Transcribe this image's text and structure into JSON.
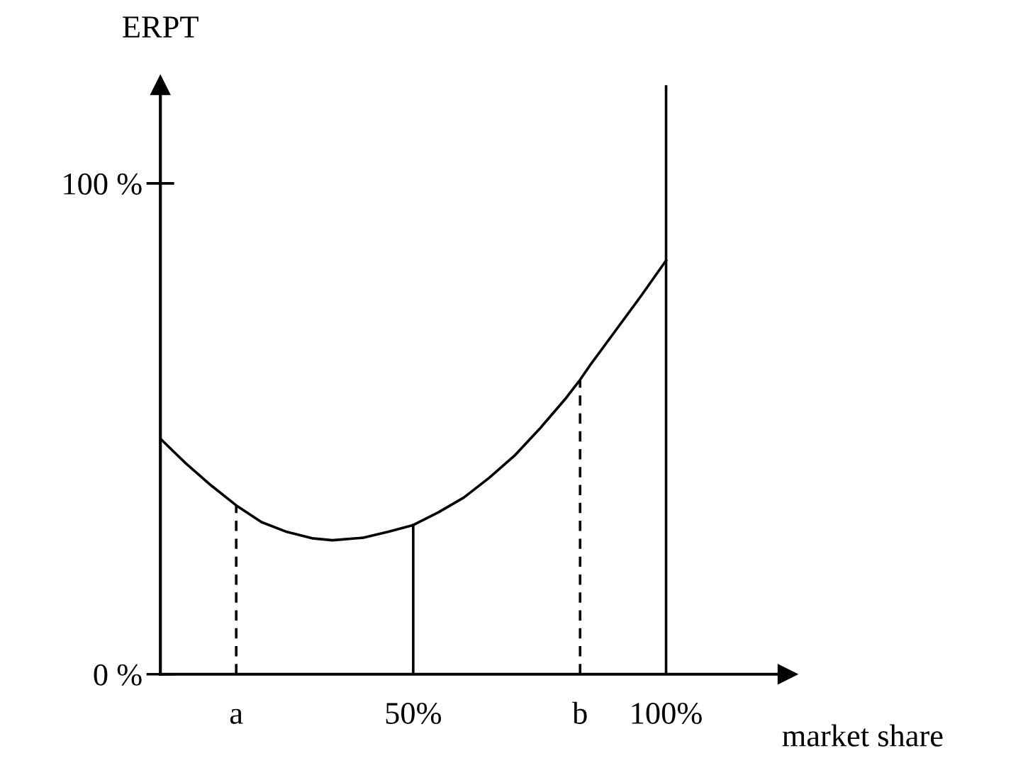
{
  "chart_data": {
    "type": "line",
    "xlabel": "market share",
    "ylabel": "ERPT",
    "xlim": [
      0,
      124
    ],
    "ylim": [
      0,
      120
    ],
    "xticks": [
      {
        "value": 15,
        "label": "a"
      },
      {
        "value": 50,
        "label": "50%"
      },
      {
        "value": 83,
        "label": "b"
      },
      {
        "value": 100,
        "label": "100%"
      }
    ],
    "yticks": [
      {
        "value": 0,
        "label": "0 %"
      },
      {
        "value": 100,
        "label": "100 %"
      }
    ],
    "grid": false,
    "legend": false,
    "marker": "none",
    "series": [
      {
        "color": "#000000",
        "line_style": "solid",
        "x": [
          0,
          5,
          10,
          15,
          20,
          25,
          30,
          34,
          40,
          45,
          50,
          55,
          60,
          65,
          70,
          75,
          80,
          83,
          85,
          90,
          95,
          100
        ],
        "values": [
          48,
          43,
          38.5,
          34.4,
          31,
          29,
          27.7,
          27.3,
          27.8,
          29,
          30.4,
          33,
          36,
          40,
          44.5,
          50,
          56,
          60,
          63,
          70,
          77,
          84.3
        ]
      },
      {
        "color": "#000000",
        "line_style": "dashed",
        "x": [
          15,
          15
        ],
        "values": [
          0,
          34.4
        ]
      },
      {
        "color": "#000000",
        "line_style": "solid",
        "x": [
          50,
          50
        ],
        "values": [
          0,
          30.4
        ]
      },
      {
        "color": "#000000",
        "line_style": "dashed",
        "x": [
          83,
          83
        ],
        "values": [
          0,
          60
        ]
      }
    ],
    "ref_lines": [
      {
        "axis": "x",
        "value": 100,
        "label": null,
        "color": "#000000",
        "line_style": "solid"
      }
    ]
  }
}
